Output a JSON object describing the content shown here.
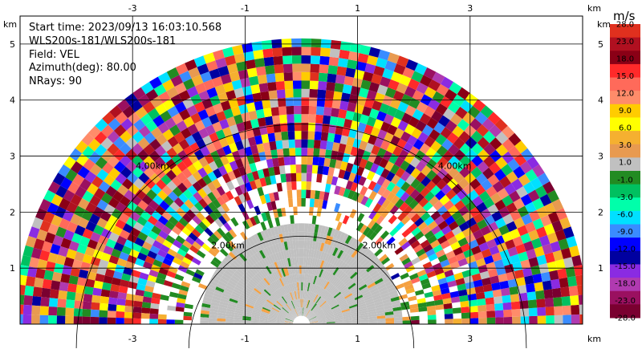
{
  "chart_data": {
    "type": "heatmap",
    "subtype": "radar-rhi-sector",
    "info_lines": [
      "Start time: 2023/09/13 16:03:10.568",
      "WLS200s-181/WLS200s-181",
      "Field: VEL",
      "Azimuth(deg): 80.00",
      "NRays: 90"
    ],
    "x_unit": "km",
    "y_unit": "km",
    "xlim": [
      -5,
      5
    ],
    "ylim": [
      0,
      5.5
    ],
    "x_ticks": [
      -3,
      -1,
      1,
      3
    ],
    "y_ticks": [
      1,
      2,
      3,
      4,
      5
    ],
    "grid": true,
    "range_rings_km": [
      2,
      4
    ],
    "range_ring_labels": [
      "2.00km",
      "2.00km",
      "4.00km",
      "4.00km"
    ],
    "max_range_km": 5.1,
    "colorbar": {
      "unit": "m/s",
      "labels": [
        "28.0",
        "23.0",
        "18.0",
        "15.0",
        "12.0",
        "9.0",
        "6.0",
        "3.0",
        "1.0",
        "-1.0",
        "-3.0",
        "-6.0",
        "-9.0",
        "-12.0",
        "-15.0",
        "-18.0",
        "-23.0",
        "-28.0"
      ],
      "colors": [
        "#e0301e",
        "#b01020",
        "#8a0016",
        "#ff2a2a",
        "#ff6a5a",
        "#ff8c6a",
        "#ffcc00",
        "#ffff00",
        "#f5b030",
        "#e89a50",
        "#c0c0c0",
        "#228b22",
        "#00c060",
        "#00ffaa",
        "#00e0ff",
        "#3a8cff",
        "#0000ff",
        "#0000a0",
        "#8a2be2",
        "#b03ab0",
        "#9a1060",
        "#7a0030"
      ]
    }
  }
}
